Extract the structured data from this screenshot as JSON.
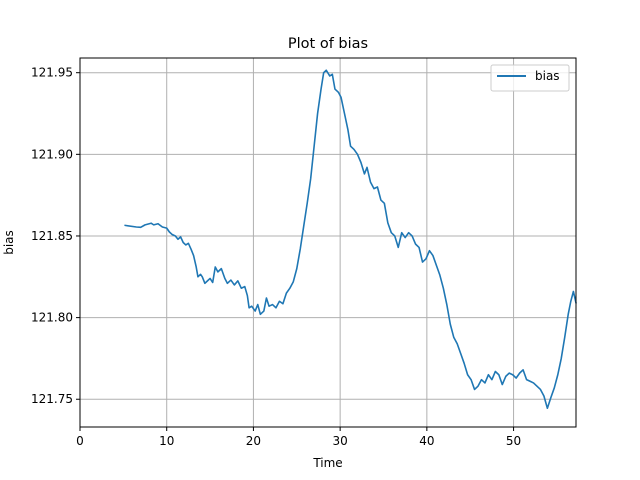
{
  "chart_data": {
    "type": "line",
    "title": "Plot of bias",
    "xlabel": "Time",
    "ylabel": "bias",
    "xlim": [
      0,
      57.2
    ],
    "ylim": [
      121.733,
      121.959
    ],
    "xticks": [
      0,
      10,
      20,
      30,
      40,
      50
    ],
    "xtick_labels": [
      "0",
      "10",
      "20",
      "30",
      "40",
      "50"
    ],
    "yticks": [
      121.75,
      121.8,
      121.85,
      121.9,
      121.95
    ],
    "ytick_labels": [
      "121.75",
      "121.80",
      "121.85",
      "121.90",
      "121.95"
    ],
    "grid": true,
    "legend": {
      "position": "top-right"
    },
    "colors": {
      "series": "#1f77b4",
      "grid": "#b0b0b0"
    },
    "series": [
      {
        "name": "bias",
        "points": [
          [
            5.2,
            121.8565
          ],
          [
            6.5,
            121.8555
          ],
          [
            7.0,
            121.8553
          ],
          [
            7.5,
            121.8568
          ],
          [
            8.2,
            121.8578
          ],
          [
            8.5,
            121.8568
          ],
          [
            9.0,
            121.8575
          ],
          [
            9.5,
            121.8555
          ],
          [
            10.0,
            121.8548
          ],
          [
            10.3,
            121.8525
          ],
          [
            10.6,
            121.851
          ],
          [
            11.0,
            121.85
          ],
          [
            11.3,
            121.848
          ],
          [
            11.6,
            121.8495
          ],
          [
            11.9,
            121.846
          ],
          [
            12.2,
            121.8445
          ],
          [
            12.5,
            121.8455
          ],
          [
            12.8,
            121.842
          ],
          [
            13.1,
            121.838
          ],
          [
            13.4,
            121.831
          ],
          [
            13.6,
            121.825
          ],
          [
            13.9,
            121.8265
          ],
          [
            14.1,
            121.825
          ],
          [
            14.4,
            121.821
          ],
          [
            14.7,
            121.8225
          ],
          [
            15.0,
            121.824
          ],
          [
            15.3,
            121.8215
          ],
          [
            15.6,
            121.831
          ],
          [
            15.9,
            121.828
          ],
          [
            16.3,
            121.83
          ],
          [
            16.7,
            121.824
          ],
          [
            17.0,
            121.821
          ],
          [
            17.4,
            121.823
          ],
          [
            17.8,
            121.82
          ],
          [
            18.2,
            121.8225
          ],
          [
            18.6,
            121.818
          ],
          [
            19.0,
            121.819
          ],
          [
            19.3,
            121.8135
          ],
          [
            19.5,
            121.806
          ],
          [
            19.8,
            121.807
          ],
          [
            20.2,
            121.804
          ],
          [
            20.5,
            121.808
          ],
          [
            20.8,
            121.802
          ],
          [
            21.2,
            121.804
          ],
          [
            21.5,
            121.812
          ],
          [
            21.8,
            121.807
          ],
          [
            22.2,
            121.808
          ],
          [
            22.6,
            121.806
          ],
          [
            23.0,
            121.81
          ],
          [
            23.4,
            121.8085
          ],
          [
            23.8,
            121.815
          ],
          [
            24.2,
            121.818
          ],
          [
            24.6,
            121.822
          ],
          [
            25.0,
            121.83
          ],
          [
            25.4,
            121.842
          ],
          [
            25.8,
            121.856
          ],
          [
            26.2,
            121.87
          ],
          [
            26.6,
            121.885
          ],
          [
            27.0,
            121.905
          ],
          [
            27.4,
            121.925
          ],
          [
            27.8,
            121.94
          ],
          [
            28.1,
            121.95
          ],
          [
            28.4,
            121.9515
          ],
          [
            28.8,
            121.948
          ],
          [
            29.1,
            121.949
          ],
          [
            29.4,
            121.94
          ],
          [
            29.8,
            121.938
          ],
          [
            30.1,
            121.935
          ],
          [
            30.5,
            121.925
          ],
          [
            30.9,
            121.915
          ],
          [
            31.2,
            121.905
          ],
          [
            31.6,
            121.903
          ],
          [
            32.0,
            121.9
          ],
          [
            32.4,
            121.895
          ],
          [
            32.8,
            121.888
          ],
          [
            33.1,
            121.892
          ],
          [
            33.5,
            121.883
          ],
          [
            33.9,
            121.879
          ],
          [
            34.3,
            121.88
          ],
          [
            34.7,
            121.872
          ],
          [
            35.1,
            121.87
          ],
          [
            35.5,
            121.858
          ],
          [
            35.9,
            121.852
          ],
          [
            36.3,
            121.85
          ],
          [
            36.7,
            121.843
          ],
          [
            37.1,
            121.852
          ],
          [
            37.5,
            121.849
          ],
          [
            37.9,
            121.852
          ],
          [
            38.3,
            121.85
          ],
          [
            38.7,
            121.845
          ],
          [
            39.1,
            121.843
          ],
          [
            39.5,
            121.834
          ],
          [
            39.9,
            121.836
          ],
          [
            40.3,
            121.841
          ],
          [
            40.7,
            121.838
          ],
          [
            41.1,
            121.832
          ],
          [
            41.5,
            121.826
          ],
          [
            41.9,
            121.818
          ],
          [
            42.3,
            121.808
          ],
          [
            42.7,
            121.796
          ],
          [
            43.1,
            121.788
          ],
          [
            43.5,
            121.784
          ],
          [
            43.9,
            121.778
          ],
          [
            44.3,
            121.772
          ],
          [
            44.7,
            121.765
          ],
          [
            45.1,
            121.762
          ],
          [
            45.5,
            121.756
          ],
          [
            45.9,
            121.758
          ],
          [
            46.3,
            121.762
          ],
          [
            46.7,
            121.76
          ],
          [
            47.1,
            121.765
          ],
          [
            47.5,
            121.762
          ],
          [
            47.9,
            121.767
          ],
          [
            48.3,
            121.765
          ],
          [
            48.7,
            121.759
          ],
          [
            49.1,
            121.764
          ],
          [
            49.5,
            121.766
          ],
          [
            49.9,
            121.765
          ],
          [
            50.3,
            121.763
          ],
          [
            50.7,
            121.766
          ],
          [
            51.1,
            121.768
          ],
          [
            51.5,
            121.762
          ],
          [
            51.9,
            121.761
          ],
          [
            52.3,
            121.76
          ],
          [
            52.7,
            121.758
          ],
          [
            53.1,
            121.756
          ],
          [
            53.5,
            121.752
          ],
          [
            53.9,
            121.7445
          ],
          [
            54.3,
            121.751
          ],
          [
            54.7,
            121.757
          ],
          [
            55.1,
            121.765
          ],
          [
            55.5,
            121.775
          ],
          [
            55.9,
            121.788
          ],
          [
            56.3,
            121.802
          ],
          [
            56.6,
            121.81
          ],
          [
            56.9,
            121.816
          ],
          [
            57.2,
            121.809
          ]
        ]
      }
    ]
  }
}
